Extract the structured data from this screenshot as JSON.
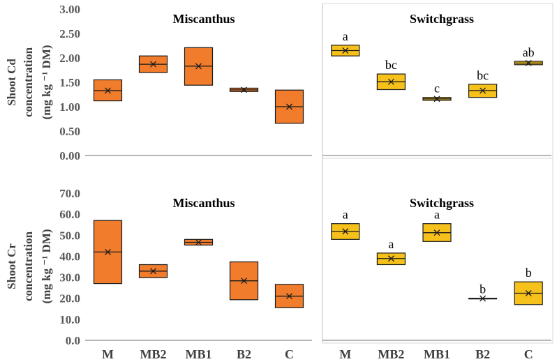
{
  "colors": {
    "miscanthus": "#f07c2c",
    "switchgrass": "#f7c11b",
    "outline": "#1a1a1a",
    "axis": "#8c8c8c"
  },
  "categories": [
    "M",
    "MB2",
    "MB1",
    "B2",
    "C"
  ],
  "chart_data": [
    {
      "type": "box",
      "title": "Miscanthus",
      "ylabel_lines": [
        "Shoot Cd",
        "concentration",
        "(mg kg ⁻¹ DM)"
      ],
      "ylim": [
        0,
        3.0
      ],
      "yticks": [
        "0.00",
        "0.50",
        "1.00",
        "1.50",
        "2.00",
        "2.50",
        "3.00"
      ],
      "boxes": [
        {
          "category": "M",
          "low": 1.12,
          "high": 1.55,
          "median": 1.33,
          "mean": 1.33
        },
        {
          "category": "MB2",
          "low": 1.7,
          "high": 2.04,
          "median": 1.87,
          "mean": 1.87
        },
        {
          "category": "MB1",
          "low": 1.44,
          "high": 2.21,
          "median": 1.83,
          "mean": 1.83
        },
        {
          "category": "B2",
          "low": 1.31,
          "high": 1.38,
          "median": 1.345,
          "mean": 1.345
        },
        {
          "category": "C",
          "low": 0.66,
          "high": 1.34,
          "median": 1.0,
          "mean": 1.0
        }
      ]
    },
    {
      "type": "box",
      "title": "Switchgrass",
      "ylim": [
        0,
        3.0
      ],
      "boxes": [
        {
          "category": "M",
          "low": 2.04,
          "high": 2.26,
          "median": 2.15,
          "mean": 2.15,
          "letter": "a"
        },
        {
          "category": "MB2",
          "low": 1.35,
          "high": 1.67,
          "median": 1.51,
          "mean": 1.51,
          "letter": "bc"
        },
        {
          "category": "MB1",
          "low": 1.13,
          "high": 1.19,
          "median": 1.16,
          "mean": 1.16,
          "letter": "c"
        },
        {
          "category": "B2",
          "low": 1.19,
          "high": 1.46,
          "median": 1.33,
          "mean": 1.33,
          "letter": "bc"
        },
        {
          "category": "C",
          "low": 1.86,
          "high": 1.93,
          "median": 1.895,
          "mean": 1.895,
          "letter": "ab"
        }
      ]
    },
    {
      "type": "box",
      "title": "Miscanthus",
      "ylabel_lines": [
        "Shoot Cr",
        "concentration",
        "(mg kg ⁻¹ DM)"
      ],
      "ylim": [
        0,
        70.0
      ],
      "yticks": [
        "0.0",
        "10.0",
        "20.0",
        "30.0",
        "40.0",
        "50.0",
        "60.0",
        "70.0"
      ],
      "xlabels": [
        "M",
        "MB2",
        "MB1",
        "B2",
        "C"
      ],
      "boxes": [
        {
          "category": "M",
          "low": 27.0,
          "high": 57.0,
          "median": 42.0,
          "mean": 42.0
        },
        {
          "category": "MB2",
          "low": 29.8,
          "high": 36.0,
          "median": 32.9,
          "mean": 32.9
        },
        {
          "category": "MB1",
          "low": 45.3,
          "high": 48.0,
          "median": 46.6,
          "mean": 46.6
        },
        {
          "category": "B2",
          "low": 19.3,
          "high": 37.3,
          "median": 28.3,
          "mean": 28.3
        },
        {
          "category": "C",
          "low": 15.5,
          "high": 26.6,
          "median": 21.0,
          "mean": 21.0
        }
      ]
    },
    {
      "type": "box",
      "title": "Switchgrass",
      "ylim": [
        0,
        70.0
      ],
      "xlabels": [
        "M",
        "MB2",
        "MB1",
        "B2",
        "C"
      ],
      "boxes": [
        {
          "category": "M",
          "low": 48.0,
          "high": 55.5,
          "median": 51.8,
          "mean": 51.8,
          "letter": "a"
        },
        {
          "category": "MB2",
          "low": 36.0,
          "high": 41.5,
          "median": 38.9,
          "mean": 38.9,
          "letter": "a"
        },
        {
          "category": "MB1",
          "low": 47.0,
          "high": 55.5,
          "median": 51.2,
          "mean": 51.2,
          "letter": "a"
        },
        {
          "category": "B2",
          "low": 19.8,
          "high": 20.0,
          "median": 19.9,
          "mean": 19.9,
          "letter": "b"
        },
        {
          "category": "C",
          "low": 17.0,
          "high": 27.8,
          "median": 22.4,
          "mean": 22.4,
          "letter": "b"
        }
      ]
    }
  ]
}
